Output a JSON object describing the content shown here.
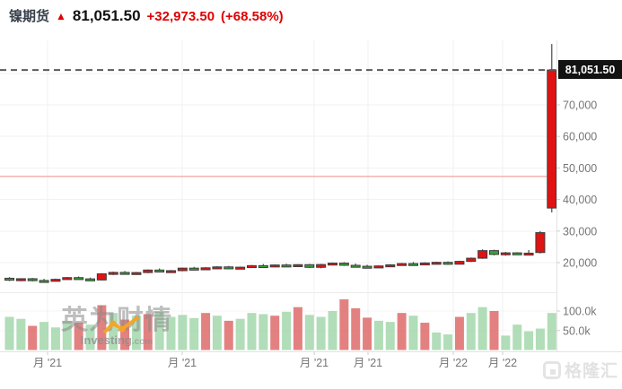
{
  "header": {
    "title": "镍期货",
    "arrow": "▲",
    "last_price": "81,051.50",
    "change": "+32,973.50",
    "change_pct": "(+68.58%)"
  },
  "price_badge": "81,051.50",
  "watermarks": {
    "investing_cn": "英为财情",
    "investing_domain": "Investing",
    "investing_tld": ".com",
    "gelonghui": "格隆汇"
  },
  "colors": {
    "candle_up": "#e11212",
    "candle_down": "#36a336",
    "candle_border": "#3d3d3d",
    "wick": "#4a4a4a",
    "vol_red": "#e07373",
    "vol_green": "#a8d9b0",
    "grid": "#f2f2f2",
    "panel_border": "#e3e3e3",
    "axis_text": "#757575",
    "dashed_line": "#5a5a5a",
    "reference_line": "#f4b3b3"
  },
  "chart_data": {
    "type": "candlestick",
    "panels": [
      "price",
      "volume"
    ],
    "title": "镍期货",
    "current_price": 81051.5,
    "current_price_label": "81,051.50",
    "reference_line_price": 47400,
    "price_axis": {
      "ylim": [
        12000,
        90000
      ],
      "grid": true
    },
    "volume_axis": {
      "ylim": [
        0,
        135000
      ],
      "grid": true
    },
    "price_ticks": [
      {
        "value": 70000,
        "label": "70,000"
      },
      {
        "value": 60000,
        "label": "60,000"
      },
      {
        "value": 50000,
        "label": "50,000"
      },
      {
        "value": 40000,
        "label": "40,000"
      },
      {
        "value": 30000,
        "label": "30,000"
      },
      {
        "value": 20000,
        "label": "20,000"
      }
    ],
    "volume_ticks": [
      {
        "value": 100,
        "label": "100.0k"
      },
      {
        "value": 50,
        "label": "50.0k"
      }
    ],
    "x_ticks": [
      {
        "pos": 53,
        "label": "月 '21"
      },
      {
        "pos": 203,
        "label": "月 '21"
      },
      {
        "pos": 350,
        "label": "月 '21"
      },
      {
        "pos": 410,
        "label": "月 '21"
      },
      {
        "pos": 505,
        "label": "月 '22"
      },
      {
        "pos": 560,
        "label": "月 '22"
      }
    ],
    "candles": [
      [
        15050,
        15400,
        14150,
        14450
      ],
      [
        14450,
        15050,
        14100,
        14900
      ],
      [
        14900,
        15150,
        14050,
        14350
      ],
      [
        14350,
        14850,
        13950,
        14250
      ],
      [
        14250,
        14950,
        14050,
        14700
      ],
      [
        14700,
        15450,
        14500,
        15250
      ],
      [
        15250,
        15600,
        14650,
        14850
      ],
      [
        14850,
        15250,
        14250,
        14500
      ],
      [
        14500,
        16650,
        14400,
        16450
      ],
      [
        16450,
        17150,
        16050,
        16900
      ],
      [
        16900,
        17350,
        16250,
        16500
      ],
      [
        16500,
        17050,
        16150,
        16850
      ],
      [
        16850,
        17850,
        16650,
        17650
      ],
      [
        17650,
        18150,
        16900,
        17100
      ],
      [
        17100,
        17650,
        16750,
        17450
      ],
      [
        17450,
        18450,
        17250,
        18250
      ],
      [
        18250,
        18650,
        17700,
        17900
      ],
      [
        17900,
        18550,
        17600,
        18350
      ],
      [
        18350,
        18850,
        18050,
        18650
      ],
      [
        18650,
        18950,
        17900,
        18150
      ],
      [
        18150,
        18750,
        17850,
        18550
      ],
      [
        18550,
        19250,
        18350,
        19050
      ],
      [
        19050,
        19550,
        18600,
        18800
      ],
      [
        18800,
        19450,
        18550,
        19250
      ],
      [
        19250,
        19650,
        18900,
        19050
      ],
      [
        19050,
        19500,
        18700,
        19350
      ],
      [
        19350,
        19600,
        18300,
        18500
      ],
      [
        18500,
        19600,
        18200,
        19400
      ],
      [
        19400,
        20050,
        19200,
        19850
      ],
      [
        19850,
        20150,
        18950,
        19150
      ],
      [
        19150,
        19700,
        18650,
        18850
      ],
      [
        18850,
        19300,
        18300,
        18500
      ],
      [
        18500,
        19150,
        18300,
        18950
      ],
      [
        18950,
        19500,
        18750,
        19300
      ],
      [
        19300,
        19900,
        19100,
        19700
      ],
      [
        19700,
        20200,
        19300,
        19500
      ],
      [
        19500,
        20100,
        19350,
        19900
      ],
      [
        19900,
        20300,
        19600,
        20100
      ],
      [
        20100,
        20400,
        19300,
        19500
      ],
      [
        19500,
        20600,
        19400,
        20400
      ],
      [
        20400,
        21600,
        20200,
        21400
      ],
      [
        21400,
        24200,
        21200,
        23800
      ],
      [
        23800,
        24100,
        22300,
        22600
      ],
      [
        22600,
        23400,
        22200,
        23100
      ],
      [
        23100,
        23300,
        22500,
        22700
      ],
      [
        22700,
        24000,
        22500,
        23000
      ],
      [
        23200,
        30000,
        22900,
        29500
      ],
      [
        37300,
        89300,
        35900,
        81051.5
      ]
    ],
    "volumes_k": [
      85,
      80,
      62,
      72,
      58,
      75,
      70,
      65,
      115,
      95,
      78,
      88,
      92,
      98,
      85,
      90,
      82,
      95,
      88,
      75,
      80,
      95,
      92,
      88,
      98,
      110,
      90,
      85,
      100,
      130,
      107,
      83,
      75,
      72,
      95,
      88,
      70,
      45,
      40,
      85,
      95,
      110,
      100,
      37,
      65,
      48,
      55,
      95
    ],
    "volume_colors": [
      "g",
      "g",
      "r",
      "g",
      "g",
      "g",
      "r",
      "g",
      "r",
      "g",
      "r",
      "g",
      "r",
      "g",
      "g",
      "g",
      "g",
      "r",
      "g",
      "r",
      "g",
      "g",
      "g",
      "r",
      "g",
      "r",
      "g",
      "g",
      "g",
      "r",
      "r",
      "r",
      "g",
      "g",
      "r",
      "g",
      "r",
      "g",
      "g",
      "r",
      "g",
      "g",
      "r",
      "g",
      "g",
      "g",
      "g",
      "g"
    ]
  }
}
